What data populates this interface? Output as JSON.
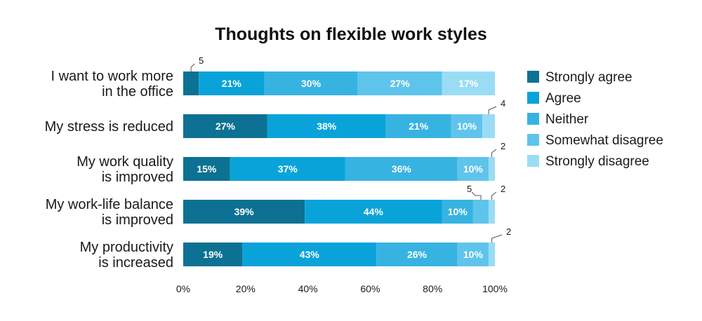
{
  "chart_data": {
    "type": "bar",
    "orientation": "horizontal",
    "stacked": true,
    "title": "Thoughts on flexible work styles",
    "categories": [
      [
        "I want to work more",
        "in the office"
      ],
      [
        "My stress is reduced"
      ],
      [
        "My work quality",
        "is improved"
      ],
      [
        "My work-life balance",
        "is improved"
      ],
      [
        "My productivity",
        "is increased"
      ]
    ],
    "series": [
      {
        "name": "Strongly agree",
        "color": "#0d7193",
        "values": [
          5,
          27,
          15,
          39,
          19
        ]
      },
      {
        "name": "Agree",
        "color": "#0aa3d9",
        "values": [
          21,
          38,
          37,
          44,
          43
        ]
      },
      {
        "name": "Neither",
        "color": "#37b3e2",
        "values": [
          30,
          21,
          36,
          10,
          26
        ]
      },
      {
        "name": "Somewhat disagree",
        "color": "#5fc4eb",
        "values": [
          27,
          10,
          10,
          5,
          10
        ]
      },
      {
        "name": "Strongly disagree",
        "color": "#9bdcf5",
        "values": [
          17,
          4,
          2,
          2,
          2
        ]
      }
    ],
    "xlim": [
      0,
      100
    ],
    "xticks": [
      "0%",
      "20%",
      "40%",
      "60%",
      "80%",
      "100%"
    ],
    "legend_position": "right",
    "grid": false
  }
}
